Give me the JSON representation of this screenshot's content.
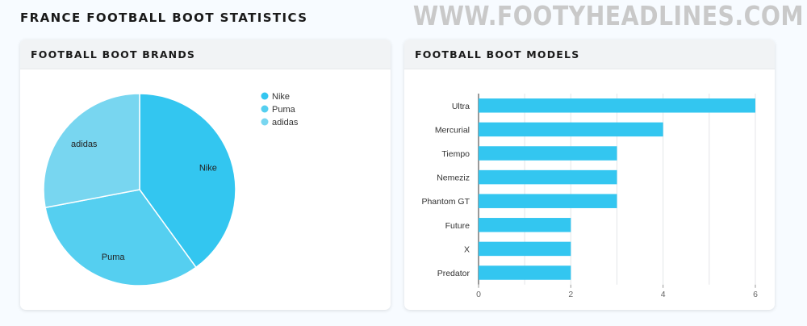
{
  "page": {
    "title": "FRANCE FOOTBALL BOOT STATISTICS",
    "watermark": "WWW.FOOTYHEADLINES.COM"
  },
  "brands_card": {
    "title": "FOOTBALL BOOT BRANDS"
  },
  "models_card": {
    "title": "FOOTBALL BOOT MODELS"
  },
  "colors": {
    "nike": "#33c6f0",
    "puma": "#55cff0",
    "adidas": "#78d6f0",
    "bar": "#33c6f0"
  },
  "chart_data": [
    {
      "type": "pie",
      "title": "FOOTBALL BOOT BRANDS",
      "categories": [
        "Nike",
        "Puma",
        "adidas"
      ],
      "values": [
        10,
        8,
        7
      ],
      "legend": "top-right"
    },
    {
      "type": "bar",
      "orientation": "horizontal",
      "title": "FOOTBALL BOOT MODELS",
      "categories": [
        "Ultra",
        "Mercurial",
        "Tiempo",
        "Nemeziz",
        "Phantom GT",
        "Future",
        "X",
        "Predator"
      ],
      "values": [
        6,
        4,
        3,
        3,
        3,
        2,
        2,
        2
      ],
      "xlim": [
        0,
        6
      ],
      "xticks": [
        0,
        2,
        4,
        6
      ],
      "grid": true
    }
  ]
}
